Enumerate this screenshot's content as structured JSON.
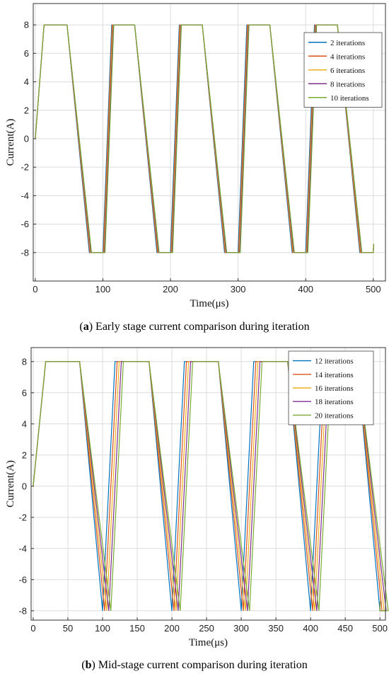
{
  "chart_data": [
    {
      "type": "line",
      "panel_letter": "a",
      "caption_rest": ") Early stage current comparison during iteration",
      "xlabel": "Time(μs)",
      "ylabel": "Current(A)",
      "xlim": [
        -3,
        518
      ],
      "ylim": [
        -10,
        9.5
      ],
      "xticks": [
        0,
        100,
        200,
        300,
        400,
        500
      ],
      "yticks": [
        -8,
        -6,
        -4,
        -2,
        0,
        2,
        4,
        6,
        8
      ],
      "grid": true,
      "legend_position": "top-right",
      "series": [
        {
          "name": "2 iterations",
          "color": "#0072BD",
          "shift": 0,
          "rise_top": 13,
          "fall_start": 47
        },
        {
          "name": "4 iterations",
          "color": "#D95319",
          "shift": 0.8,
          "rise_top": 13,
          "fall_start": 47
        },
        {
          "name": "6 iterations",
          "color": "#EDB120",
          "shift": 1.6,
          "rise_top": 13,
          "fall_start": 47
        },
        {
          "name": "8 iterations",
          "color": "#7E2F8E",
          "shift": 2.4,
          "rise_top": 13,
          "fall_start": 47
        },
        {
          "name": "10 iterations",
          "color": "#77AC30",
          "shift": 3.2,
          "rise_top": 13,
          "fall_start": 47
        }
      ]
    },
    {
      "type": "line",
      "panel_letter": "b",
      "caption_rest": ") Mid-stage current comparison during iteration",
      "xlabel": "Time(μs)",
      "ylabel": "Current(A)",
      "xlim": [
        -3,
        508
      ],
      "ylim": [
        -8.6,
        8.9
      ],
      "xticks": [
        0,
        50,
        100,
        150,
        200,
        250,
        300,
        350,
        400,
        450,
        500
      ],
      "yticks": [
        -8,
        -6,
        -4,
        -2,
        0,
        2,
        4,
        6,
        8
      ],
      "grid": true,
      "legend_position": "top-right",
      "series": [
        {
          "name": "12 iterations",
          "color": "#0072BD",
          "shift": 0,
          "rise_top": 18,
          "fall_start": 67
        },
        {
          "name": "14 iterations",
          "color": "#D95319",
          "shift": 3,
          "rise_top": 18,
          "fall_start": 67
        },
        {
          "name": "16 iterations",
          "color": "#EDB120",
          "shift": 6,
          "rise_top": 18,
          "fall_start": 67
        },
        {
          "name": "18 iterations",
          "color": "#7E2F8E",
          "shift": 9,
          "rise_top": 18,
          "fall_start": 67
        },
        {
          "name": "20 iterations",
          "color": "#77AC30",
          "shift": 12,
          "rise_top": 18,
          "fall_start": 67
        }
      ]
    }
  ]
}
